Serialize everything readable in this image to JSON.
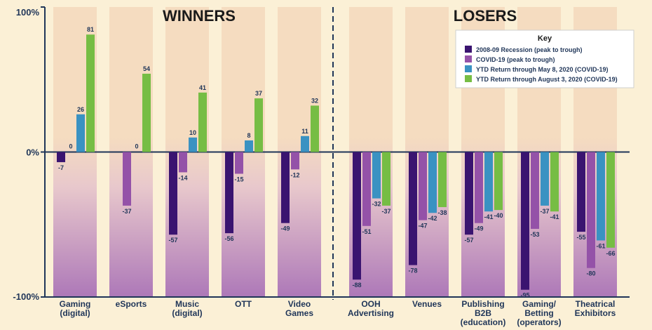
{
  "colors": {
    "background": "#fbf0d6",
    "axis": "#1f3558",
    "text": "#1f3558",
    "series": [
      "#3a1470",
      "#9452a8",
      "#3a92c2",
      "#76bd44"
    ],
    "column_top": "#f5dcc0",
    "column_mid": "#e8c8cc",
    "column_bottom": "#ad78b8"
  },
  "chart_data": {
    "type": "bar",
    "title": "",
    "xlabel": "",
    "ylabel": "",
    "ylim": [
      -100,
      100
    ],
    "y_ticks": [
      {
        "value": 100,
        "label": "100%"
      },
      {
        "value": 0,
        "label": "0%"
      },
      {
        "value": -100,
        "label": "-100%"
      }
    ],
    "groups": [
      {
        "label": "WINNERS",
        "start": 0,
        "end": 4
      },
      {
        "label": "LOSERS",
        "start": 5,
        "end": 9
      }
    ],
    "categories": [
      [
        "Gaming",
        "(digital)"
      ],
      [
        "eSports"
      ],
      [
        "Music",
        "(digital)"
      ],
      [
        "OTT"
      ],
      [
        "Video",
        "Games"
      ],
      [
        "OOH",
        "Advertising"
      ],
      [
        "Venues"
      ],
      [
        "Publishing",
        "B2B",
        "(education)"
      ],
      [
        "Gaming/",
        "Betting",
        "(operators)"
      ],
      [
        "Theatrical",
        "Exhibitors"
      ]
    ],
    "series": [
      {
        "name": "2008-09 Recession (peak to trough)",
        "values": [
          -7,
          null,
          -57,
          -56,
          -49,
          -88,
          -78,
          -57,
          -95,
          -55
        ],
        "labels": [
          "-7",
          "",
          "-57",
          "-56",
          "-49",
          "-88",
          "-78",
          "-57",
          "-95",
          "-55"
        ]
      },
      {
        "name": "COVID-19 (peak to trough)",
        "values": [
          0,
          -37,
          -14,
          -15,
          -12,
          -51,
          -47,
          -49,
          -53,
          -80
        ],
        "labels": [
          "0",
          "-37",
          "-14",
          "-15",
          "-12",
          "-51",
          "-47",
          "-49",
          "-53",
          "-80"
        ]
      },
      {
        "name": "YTD Return through May 8, 2020 (COVID-19)",
        "values": [
          26,
          0,
          10,
          8,
          11,
          -32,
          -42,
          -41,
          -37,
          -61
        ],
        "labels": [
          "26",
          "0",
          "10",
          "8",
          "11",
          "-32",
          "-42",
          "-41",
          "-37",
          "-61"
        ]
      },
      {
        "name": "YTD Return through August 3, 2020 (COVID-19)",
        "values": [
          81,
          54,
          41,
          37,
          32,
          -37,
          -38,
          -40,
          -41,
          -66
        ],
        "labels": [
          "81",
          "54",
          "41",
          "37",
          "32",
          "-37",
          "-38",
          "-40",
          "-41",
          "-66"
        ]
      }
    ],
    "legend": {
      "title": "Key",
      "position": "top-right"
    },
    "divider": "dashed vertical line between winners and losers"
  }
}
